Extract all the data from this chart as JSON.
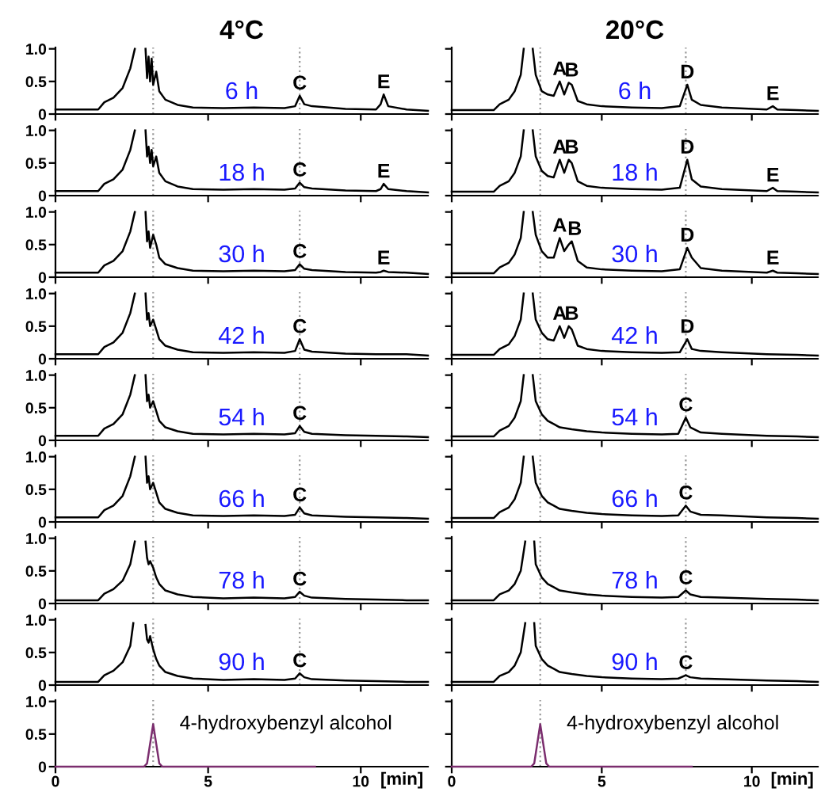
{
  "chart_data": [
    {
      "type": "line",
      "title": "4°C",
      "xlim": [
        0,
        12.2
      ],
      "ylim": [
        0,
        1.02
      ],
      "xticks": [
        0,
        5,
        10
      ],
      "yticks": [
        0,
        0.5,
        {
          "value": 1,
          "label": "1.0"
        }
      ],
      "tick_labels": "y",
      "ref_lines": [
        {
          "axis": "x",
          "value": 3.2,
          "color": "#999999",
          "line_style": "dotted"
        },
        {
          "axis": "x",
          "value": 8.0,
          "color": "#999999",
          "line_style": "dotted"
        }
      ],
      "annotations": [
        "6 h",
        {
          "text": "C",
          "x": 8.0,
          "y": 0.28
        },
        {
          "text": "E",
          "x": 10.75,
          "y": 0.3
        }
      ],
      "series": [
        {
          "color": "#000000",
          "x": [
            0,
            1.4,
            1.6,
            1.9,
            2.2,
            2.45,
            2.6,
            2.62,
            2.95,
            3.0,
            3.05,
            3.1,
            3.15,
            3.2,
            3.3,
            3.4,
            3.6,
            4.0,
            4.5,
            5.5,
            6.5,
            7.5,
            7.85,
            8.0,
            8.15,
            8.4,
            9.5,
            10.5,
            10.65,
            10.75,
            10.9,
            11.5,
            12.2
          ],
          "values": [
            0.07,
            0.07,
            0.18,
            0.25,
            0.4,
            0.7,
            1.0,
            null,
            1.0,
            0.55,
            0.88,
            0.5,
            0.85,
            0.45,
            0.65,
            0.35,
            0.22,
            0.14,
            0.1,
            0.09,
            0.1,
            0.09,
            0.12,
            0.28,
            0.15,
            0.12,
            0.08,
            0.07,
            0.15,
            0.3,
            0.12,
            0.07,
            0.05
          ]
        }
      ]
    },
    {
      "type": "line",
      "xlim": [
        0,
        12.2
      ],
      "ylim": [
        0,
        1.02
      ],
      "xticks": [
        0,
        5,
        10
      ],
      "yticks": [
        0,
        0.5,
        {
          "value": 1,
          "label": "1.0"
        }
      ],
      "tick_labels": "y",
      "ref_lines": [
        {
          "axis": "x",
          "value": 3.2,
          "color": "#999999",
          "line_style": "dotted"
        },
        {
          "axis": "x",
          "value": 8.0,
          "color": "#999999",
          "line_style": "dotted"
        }
      ],
      "annotations": [
        "18 h",
        {
          "text": "C",
          "x": 8.0,
          "y": 0.2
        },
        {
          "text": "E",
          "x": 10.75,
          "y": 0.18
        }
      ],
      "series": [
        {
          "color": "#000000",
          "x": [
            0,
            1.4,
            1.6,
            1.9,
            2.2,
            2.45,
            2.6,
            2.62,
            2.95,
            3.0,
            3.05,
            3.1,
            3.15,
            3.2,
            3.3,
            3.4,
            3.6,
            4.0,
            4.5,
            5.5,
            6.5,
            7.5,
            7.85,
            8.0,
            8.15,
            8.4,
            9.5,
            10.5,
            10.65,
            10.75,
            10.9,
            11.5,
            12.2
          ],
          "values": [
            0.07,
            0.07,
            0.18,
            0.25,
            0.4,
            0.7,
            1.0,
            null,
            1.0,
            0.6,
            0.75,
            0.5,
            0.7,
            0.45,
            0.6,
            0.35,
            0.22,
            0.14,
            0.1,
            0.09,
            0.1,
            0.09,
            0.11,
            0.2,
            0.13,
            0.11,
            0.08,
            0.07,
            0.1,
            0.18,
            0.1,
            0.07,
            0.05
          ]
        }
      ]
    },
    {
      "type": "line",
      "xlim": [
        0,
        12.2
      ],
      "ylim": [
        0,
        1.02
      ],
      "xticks": [
        0,
        5,
        10
      ],
      "yticks": [
        0,
        0.5,
        {
          "value": 1,
          "label": "1.0"
        }
      ],
      "tick_labels": "y",
      "ref_lines": [
        {
          "axis": "x",
          "value": 3.2,
          "color": "#999999",
          "line_style": "dotted"
        },
        {
          "axis": "x",
          "value": 8.0,
          "color": "#999999",
          "line_style": "dotted"
        }
      ],
      "annotations": [
        "30 h",
        {
          "text": "C",
          "x": 8.0,
          "y": 0.2
        },
        {
          "text": "E",
          "x": 10.75,
          "y": 0.1
        }
      ],
      "series": [
        {
          "color": "#000000",
          "x": [
            0,
            1.4,
            1.6,
            1.9,
            2.2,
            2.45,
            2.6,
            2.62,
            2.95,
            3.0,
            3.05,
            3.1,
            3.15,
            3.2,
            3.3,
            3.4,
            3.6,
            4.0,
            4.5,
            5.5,
            6.5,
            7.5,
            7.85,
            8.0,
            8.15,
            8.4,
            9.5,
            10.5,
            10.65,
            10.75,
            10.9,
            11.5,
            12.2
          ],
          "values": [
            0.07,
            0.07,
            0.18,
            0.25,
            0.4,
            0.7,
            1.0,
            null,
            1.0,
            0.55,
            0.7,
            0.45,
            0.55,
            0.65,
            0.5,
            0.3,
            0.2,
            0.14,
            0.1,
            0.09,
            0.1,
            0.09,
            0.11,
            0.2,
            0.13,
            0.11,
            0.08,
            0.07,
            0.08,
            0.1,
            0.08,
            0.07,
            0.05
          ]
        }
      ]
    },
    {
      "type": "line",
      "xlim": [
        0,
        12.2
      ],
      "ylim": [
        0,
        1.02
      ],
      "xticks": [
        0,
        5,
        10
      ],
      "yticks": [
        0,
        0.5,
        {
          "value": 1,
          "label": "1.0"
        }
      ],
      "tick_labels": "y",
      "ref_lines": [
        {
          "axis": "x",
          "value": 3.2,
          "color": "#999999",
          "line_style": "dotted"
        },
        {
          "axis": "x",
          "value": 8.0,
          "color": "#999999",
          "line_style": "dotted"
        }
      ],
      "annotations": [
        "42 h",
        {
          "text": "C",
          "x": 8.0,
          "y": 0.3
        }
      ],
      "series": [
        {
          "color": "#000000",
          "x": [
            0,
            1.4,
            1.6,
            1.9,
            2.2,
            2.45,
            2.6,
            2.62,
            2.95,
            3.0,
            3.05,
            3.1,
            3.15,
            3.2,
            3.3,
            3.4,
            3.6,
            4.0,
            4.5,
            5.5,
            6.5,
            7.5,
            7.85,
            8.0,
            8.15,
            8.4,
            9.5,
            10.5,
            11.5,
            12.2
          ],
          "values": [
            0.07,
            0.07,
            0.18,
            0.25,
            0.4,
            0.7,
            1.0,
            null,
            1.0,
            0.6,
            0.7,
            0.5,
            0.55,
            0.6,
            0.45,
            0.3,
            0.2,
            0.14,
            0.1,
            0.09,
            0.1,
            0.09,
            0.12,
            0.3,
            0.14,
            0.11,
            0.08,
            0.07,
            0.07,
            0.05
          ]
        }
      ]
    },
    {
      "type": "line",
      "xlim": [
        0,
        12.2
      ],
      "ylim": [
        0,
        1.02
      ],
      "xticks": [
        0,
        5,
        10
      ],
      "yticks": [
        0,
        0.5,
        {
          "value": 1,
          "label": "1.0"
        }
      ],
      "tick_labels": "y",
      "ref_lines": [
        {
          "axis": "x",
          "value": 3.2,
          "color": "#999999",
          "line_style": "dotted"
        },
        {
          "axis": "x",
          "value": 8.0,
          "color": "#999999",
          "line_style": "dotted"
        }
      ],
      "annotations": [
        "54 h",
        {
          "text": "C",
          "x": 8.0,
          "y": 0.22
        }
      ],
      "series": [
        {
          "color": "#000000",
          "x": [
            0,
            1.4,
            1.6,
            1.9,
            2.2,
            2.45,
            2.6,
            2.62,
            2.95,
            3.0,
            3.05,
            3.1,
            3.15,
            3.2,
            3.3,
            3.4,
            3.6,
            4.0,
            4.5,
            5.5,
            6.5,
            7.5,
            7.85,
            8.0,
            8.15,
            8.4,
            9.5,
            10.5,
            11.5,
            12.2
          ],
          "values": [
            0.07,
            0.07,
            0.18,
            0.25,
            0.4,
            0.7,
            1.0,
            null,
            1.0,
            0.6,
            0.7,
            0.5,
            0.55,
            0.6,
            0.45,
            0.3,
            0.2,
            0.14,
            0.1,
            0.09,
            0.1,
            0.09,
            0.11,
            0.22,
            0.13,
            0.1,
            0.08,
            0.07,
            0.06,
            0.05
          ]
        }
      ]
    },
    {
      "type": "line",
      "xlim": [
        0,
        12.2
      ],
      "ylim": [
        0,
        1.02
      ],
      "xticks": [
        0,
        5,
        10
      ],
      "yticks": [
        0,
        0.5,
        {
          "value": 1,
          "label": "1.0"
        }
      ],
      "tick_labels": "y",
      "ref_lines": [
        {
          "axis": "x",
          "value": 3.2,
          "color": "#999999",
          "line_style": "dotted"
        },
        {
          "axis": "x",
          "value": 8.0,
          "color": "#999999",
          "line_style": "dotted"
        }
      ],
      "annotations": [
        "66 h",
        {
          "text": "C",
          "x": 8.0,
          "y": 0.22
        }
      ],
      "series": [
        {
          "color": "#000000",
          "x": [
            0,
            1.4,
            1.6,
            1.9,
            2.2,
            2.45,
            2.6,
            2.62,
            2.95,
            3.0,
            3.05,
            3.1,
            3.15,
            3.2,
            3.3,
            3.4,
            3.6,
            4.0,
            4.5,
            5.5,
            6.5,
            7.5,
            7.85,
            8.0,
            8.15,
            8.4,
            9.5,
            10.5,
            11.5,
            12.2
          ],
          "values": [
            0.07,
            0.07,
            0.18,
            0.25,
            0.4,
            0.7,
            1.0,
            null,
            1.0,
            0.6,
            0.7,
            0.5,
            0.55,
            0.6,
            0.45,
            0.3,
            0.2,
            0.14,
            0.1,
            0.09,
            0.1,
            0.09,
            0.11,
            0.22,
            0.13,
            0.1,
            0.08,
            0.07,
            0.06,
            0.05
          ]
        }
      ]
    },
    {
      "type": "line",
      "xlim": [
        0,
        12.2
      ],
      "ylim": [
        0,
        1.02
      ],
      "xticks": [
        0,
        5,
        10
      ],
      "yticks": [
        0,
        0.5,
        {
          "value": 1,
          "label": "1.0"
        }
      ],
      "tick_labels": "y",
      "ref_lines": [
        {
          "axis": "x",
          "value": 3.2,
          "color": "#999999",
          "line_style": "dotted"
        },
        {
          "axis": "x",
          "value": 8.0,
          "color": "#999999",
          "line_style": "dotted"
        }
      ],
      "annotations": [
        "78 h",
        {
          "text": "C",
          "x": 8.0,
          "y": 0.18
        }
      ],
      "series": [
        {
          "color": "#000000",
          "x": [
            0,
            1.4,
            1.6,
            1.9,
            2.2,
            2.45,
            2.6,
            2.62,
            2.95,
            3.0,
            3.05,
            3.1,
            3.2,
            3.3,
            3.4,
            3.6,
            4.0,
            4.5,
            5.5,
            6.5,
            7.5,
            7.85,
            8.0,
            8.15,
            8.4,
            9.5,
            10.5,
            11.5,
            12.2
          ],
          "values": [
            0.05,
            0.05,
            0.15,
            0.22,
            0.35,
            0.6,
            0.95,
            null,
            0.95,
            0.7,
            0.6,
            0.65,
            0.55,
            0.4,
            0.3,
            0.2,
            0.14,
            0.1,
            0.08,
            0.09,
            0.08,
            0.1,
            0.18,
            0.12,
            0.09,
            0.07,
            0.06,
            0.05,
            0.05
          ]
        }
      ]
    },
    {
      "type": "line",
      "xlim": [
        0,
        12.2
      ],
      "ylim": [
        0,
        1.02
      ],
      "xticks": [
        0,
        5,
        10
      ],
      "yticks": [
        0,
        0.5,
        {
          "value": 1,
          "label": "1.0"
        }
      ],
      "tick_labels": "y",
      "ref_lines": [
        {
          "axis": "x",
          "value": 3.2,
          "color": "#999999",
          "line_style": "dotted"
        },
        {
          "axis": "x",
          "value": 8.0,
          "color": "#999999",
          "line_style": "dotted"
        }
      ],
      "annotations": [
        "90 h",
        {
          "text": "C",
          "x": 8.0,
          "y": 0.18
        }
      ],
      "series": [
        {
          "color": "#000000",
          "x": [
            0,
            1.4,
            1.6,
            1.9,
            2.2,
            2.45,
            2.55,
            2.57,
            2.95,
            3.0,
            3.05,
            3.1,
            3.2,
            3.3,
            3.4,
            3.6,
            4.0,
            4.5,
            5.5,
            6.5,
            7.5,
            7.85,
            8.0,
            8.15,
            8.4,
            9.5,
            10.5,
            11.5,
            12.2
          ],
          "values": [
            0.05,
            0.05,
            0.15,
            0.22,
            0.35,
            0.6,
            0.95,
            null,
            0.92,
            0.7,
            0.65,
            0.75,
            0.55,
            0.4,
            0.3,
            0.2,
            0.14,
            0.1,
            0.08,
            0.09,
            0.08,
            0.1,
            0.18,
            0.12,
            0.09,
            0.07,
            0.06,
            0.05,
            0.05
          ]
        }
      ]
    },
    {
      "type": "line",
      "xlabel": "[min]",
      "xlim": [
        0,
        12.2
      ],
      "ylim": [
        0,
        1.02
      ],
      "xticks": [
        0,
        5,
        10
      ],
      "yticks": [
        0,
        0.5,
        {
          "value": 1,
          "label": "1.0"
        }
      ],
      "ref_lines": [
        {
          "axis": "x",
          "value": 3.2,
          "color": "#999999",
          "line_style": "dotted"
        }
      ],
      "annotations": [
        {
          "text": "4-hydroxybenzyl alcohol",
          "x": 3.2,
          "y": 0.65
        }
      ],
      "series": [
        {
          "color": "#7b2d6e",
          "x": [
            0,
            2.9,
            3.0,
            3.1,
            3.2,
            3.3,
            3.4,
            3.5,
            8.5
          ],
          "values": [
            0,
            0,
            0.05,
            0.35,
            0.65,
            0.35,
            0.05,
            0,
            0
          ]
        }
      ]
    },
    {
      "type": "line",
      "title": "20°C",
      "xlim": [
        0,
        12.2
      ],
      "ylim": [
        0,
        1.02
      ],
      "xticks": [
        0,
        5,
        10
      ],
      "yticks": [
        {
          "value": 0,
          "label": null
        },
        {
          "value": 0.5,
          "label": null
        },
        {
          "value": 1,
          "label": null
        }
      ],
      "tick_labels": false,
      "ref_lines": [
        {
          "axis": "x",
          "value": 2.95,
          "color": "#999999",
          "line_style": "dotted"
        },
        {
          "axis": "x",
          "value": 7.8,
          "color": "#999999",
          "line_style": "dotted"
        }
      ],
      "annotations": [
        "6 h",
        {
          "text": "A",
          "x": 3.6,
          "y": 0.5
        },
        {
          "text": "B",
          "x": 4.0,
          "y": 0.48
        },
        {
          "text": "D",
          "x": 7.85,
          "y": 0.45
        },
        {
          "text": "E",
          "x": 10.7,
          "y": 0.12
        }
      ],
      "series": [
        {
          "color": "#000000",
          "x": [
            0,
            1.4,
            1.6,
            1.9,
            2.1,
            2.3,
            2.4,
            2.42,
            2.7,
            2.8,
            3.0,
            3.2,
            3.4,
            3.6,
            3.75,
            3.9,
            4.0,
            4.2,
            4.5,
            5.0,
            6.0,
            7.0,
            7.6,
            7.85,
            8.0,
            8.3,
            9.0,
            10.5,
            10.7,
            10.85,
            11.5,
            12.2
          ],
          "values": [
            0.06,
            0.06,
            0.15,
            0.22,
            0.35,
            0.6,
            1.0,
            null,
            1.0,
            0.6,
            0.35,
            0.3,
            0.28,
            0.5,
            0.3,
            0.48,
            0.45,
            0.2,
            0.15,
            0.12,
            0.1,
            0.09,
            0.12,
            0.45,
            0.22,
            0.14,
            0.1,
            0.07,
            0.12,
            0.07,
            0.06,
            0.05
          ]
        }
      ]
    },
    {
      "type": "line",
      "xlim": [
        0,
        12.2
      ],
      "ylim": [
        0,
        1.02
      ],
      "xticks": [
        0,
        5,
        10
      ],
      "yticks": [
        {
          "value": 0,
          "label": null
        },
        {
          "value": 0.5,
          "label": null
        },
        {
          "value": 1,
          "label": null
        }
      ],
      "tick_labels": false,
      "ref_lines": [
        {
          "axis": "x",
          "value": 2.95,
          "color": "#999999",
          "line_style": "dotted"
        },
        {
          "axis": "x",
          "value": 7.8,
          "color": "#999999",
          "line_style": "dotted"
        }
      ],
      "annotations": [
        "18 h",
        {
          "text": "A",
          "x": 3.6,
          "y": 0.55
        },
        {
          "text": "B",
          "x": 4.0,
          "y": 0.55
        },
        {
          "text": "D",
          "x": 7.85,
          "y": 0.55
        },
        {
          "text": "E",
          "x": 10.7,
          "y": 0.12
        }
      ],
      "series": [
        {
          "color": "#000000",
          "x": [
            0,
            1.4,
            1.6,
            1.9,
            2.1,
            2.3,
            2.4,
            2.42,
            2.7,
            2.8,
            3.0,
            3.2,
            3.4,
            3.6,
            3.75,
            3.9,
            4.0,
            4.2,
            4.5,
            5.0,
            6.0,
            7.0,
            7.6,
            7.85,
            8.0,
            8.3,
            9.0,
            10.5,
            10.7,
            10.85,
            11.5,
            12.2
          ],
          "values": [
            0.06,
            0.06,
            0.15,
            0.22,
            0.35,
            0.6,
            1.0,
            null,
            1.0,
            0.6,
            0.38,
            0.3,
            0.28,
            0.55,
            0.35,
            0.55,
            0.5,
            0.22,
            0.15,
            0.12,
            0.1,
            0.09,
            0.12,
            0.55,
            0.25,
            0.14,
            0.1,
            0.07,
            0.12,
            0.07,
            0.06,
            0.05
          ]
        }
      ]
    },
    {
      "type": "line",
      "xlim": [
        0,
        12.2
      ],
      "ylim": [
        0,
        1.02
      ],
      "xticks": [
        0,
        5,
        10
      ],
      "yticks": [
        {
          "value": 0,
          "label": null
        },
        {
          "value": 0.5,
          "label": null
        },
        {
          "value": 1,
          "label": null
        }
      ],
      "tick_labels": false,
      "ref_lines": [
        {
          "axis": "x",
          "value": 2.95,
          "color": "#999999",
          "line_style": "dotted"
        },
        {
          "axis": "x",
          "value": 7.8,
          "color": "#999999",
          "line_style": "dotted"
        }
      ],
      "annotations": [
        "30 h",
        {
          "text": "A",
          "x": 3.6,
          "y": 0.6
        },
        {
          "text": "B",
          "x": 4.1,
          "y": 0.55
        },
        {
          "text": "D",
          "x": 7.85,
          "y": 0.45
        },
        {
          "text": "E",
          "x": 10.7,
          "y": 0.1
        }
      ],
      "series": [
        {
          "color": "#000000",
          "x": [
            0,
            1.4,
            1.6,
            1.9,
            2.1,
            2.3,
            2.4,
            2.42,
            2.7,
            2.8,
            3.0,
            3.2,
            3.4,
            3.6,
            3.75,
            3.9,
            4.0,
            4.2,
            4.5,
            5.0,
            6.0,
            7.0,
            7.6,
            7.85,
            8.0,
            8.3,
            9.0,
            10.5,
            10.7,
            10.85,
            11.5,
            12.2
          ],
          "values": [
            0.06,
            0.06,
            0.15,
            0.22,
            0.35,
            0.6,
            1.0,
            null,
            1.0,
            0.65,
            0.4,
            0.3,
            0.3,
            0.6,
            0.4,
            0.5,
            0.55,
            0.25,
            0.15,
            0.12,
            0.1,
            0.09,
            0.12,
            0.45,
            0.3,
            0.14,
            0.1,
            0.07,
            0.1,
            0.07,
            0.06,
            0.05
          ]
        }
      ]
    },
    {
      "type": "line",
      "xlim": [
        0,
        12.2
      ],
      "ylim": [
        0,
        1.02
      ],
      "xticks": [
        0,
        5,
        10
      ],
      "yticks": [
        {
          "value": 0,
          "label": null
        },
        {
          "value": 0.5,
          "label": null
        },
        {
          "value": 1,
          "label": null
        }
      ],
      "tick_labels": false,
      "ref_lines": [
        {
          "axis": "x",
          "value": 2.95,
          "color": "#999999",
          "line_style": "dotted"
        },
        {
          "axis": "x",
          "value": 7.8,
          "color": "#999999",
          "line_style": "dotted"
        }
      ],
      "annotations": [
        "42 h",
        {
          "text": "A",
          "x": 3.6,
          "y": 0.5
        },
        {
          "text": "B",
          "x": 4.0,
          "y": 0.5
        },
        {
          "text": "D",
          "x": 7.85,
          "y": 0.3
        }
      ],
      "series": [
        {
          "color": "#000000",
          "x": [
            0,
            1.4,
            1.6,
            1.9,
            2.1,
            2.3,
            2.4,
            2.42,
            2.7,
            2.8,
            3.0,
            3.2,
            3.4,
            3.6,
            3.75,
            3.9,
            4.0,
            4.2,
            4.5,
            5.0,
            6.0,
            7.0,
            7.6,
            7.85,
            8.0,
            8.3,
            9.0,
            10.5,
            11.5,
            12.2
          ],
          "values": [
            0.06,
            0.06,
            0.15,
            0.22,
            0.35,
            0.6,
            1.0,
            null,
            1.0,
            0.6,
            0.4,
            0.3,
            0.28,
            0.5,
            0.32,
            0.5,
            0.45,
            0.2,
            0.15,
            0.12,
            0.1,
            0.09,
            0.1,
            0.3,
            0.15,
            0.12,
            0.1,
            0.07,
            0.06,
            0.05
          ]
        }
      ]
    },
    {
      "type": "line",
      "xlim": [
        0,
        12.2
      ],
      "ylim": [
        0,
        1.02
      ],
      "xticks": [
        0,
        5,
        10
      ],
      "yticks": [
        {
          "value": 0,
          "label": null
        },
        {
          "value": 0.5,
          "label": null
        },
        {
          "value": 1,
          "label": null
        }
      ],
      "tick_labels": false,
      "ref_lines": [
        {
          "axis": "x",
          "value": 2.95,
          "color": "#999999",
          "line_style": "dotted"
        },
        {
          "axis": "x",
          "value": 7.8,
          "color": "#999999",
          "line_style": "dotted"
        }
      ],
      "annotations": [
        "54 h",
        {
          "text": "C",
          "x": 7.8,
          "y": 0.35
        }
      ],
      "series": [
        {
          "color": "#000000",
          "x": [
            0,
            1.4,
            1.6,
            1.9,
            2.1,
            2.3,
            2.4,
            2.42,
            2.7,
            2.8,
            3.0,
            3.2,
            3.4,
            3.6,
            4.0,
            4.5,
            5.0,
            6.0,
            7.0,
            7.55,
            7.8,
            7.95,
            8.3,
            9.0,
            10.5,
            11.5,
            12.2
          ],
          "values": [
            0.06,
            0.06,
            0.15,
            0.22,
            0.35,
            0.6,
            1.0,
            null,
            1.0,
            0.6,
            0.4,
            0.3,
            0.25,
            0.2,
            0.17,
            0.14,
            0.12,
            0.1,
            0.09,
            0.1,
            0.35,
            0.2,
            0.12,
            0.1,
            0.07,
            0.06,
            0.05
          ]
        }
      ]
    },
    {
      "type": "line",
      "xlim": [
        0,
        12.2
      ],
      "ylim": [
        0,
        1.02
      ],
      "xticks": [
        0,
        5,
        10
      ],
      "yticks": [
        {
          "value": 0,
          "label": null
        },
        {
          "value": 0.5,
          "label": null
        },
        {
          "value": 1,
          "label": null
        }
      ],
      "tick_labels": false,
      "ref_lines": [
        {
          "axis": "x",
          "value": 2.95,
          "color": "#999999",
          "line_style": "dotted"
        },
        {
          "axis": "x",
          "value": 7.8,
          "color": "#999999",
          "line_style": "dotted"
        }
      ],
      "annotations": [
        "66 h",
        {
          "text": "C",
          "x": 7.8,
          "y": 0.25
        }
      ],
      "series": [
        {
          "color": "#000000",
          "x": [
            0,
            1.4,
            1.6,
            1.9,
            2.1,
            2.3,
            2.4,
            2.42,
            2.7,
            2.8,
            3.0,
            3.2,
            3.4,
            3.6,
            4.0,
            4.5,
            5.0,
            6.0,
            7.0,
            7.55,
            7.8,
            7.95,
            8.3,
            9.0,
            10.5,
            11.5,
            12.2
          ],
          "values": [
            0.06,
            0.06,
            0.15,
            0.22,
            0.35,
            0.6,
            1.0,
            null,
            1.0,
            0.6,
            0.4,
            0.3,
            0.25,
            0.2,
            0.17,
            0.14,
            0.12,
            0.1,
            0.09,
            0.1,
            0.25,
            0.16,
            0.11,
            0.1,
            0.07,
            0.06,
            0.05
          ]
        }
      ]
    },
    {
      "type": "line",
      "xlim": [
        0,
        12.2
      ],
      "ylim": [
        0,
        1.02
      ],
      "xticks": [
        0,
        5,
        10
      ],
      "yticks": [
        {
          "value": 0,
          "label": null
        },
        {
          "value": 0.5,
          "label": null
        },
        {
          "value": 1,
          "label": null
        }
      ],
      "tick_labels": false,
      "ref_lines": [
        {
          "axis": "x",
          "value": 2.95,
          "color": "#999999",
          "line_style": "dotted"
        },
        {
          "axis": "x",
          "value": 7.8,
          "color": "#999999",
          "line_style": "dotted"
        }
      ],
      "annotations": [
        "78 h",
        {
          "text": "C",
          "x": 7.8,
          "y": 0.2
        }
      ],
      "series": [
        {
          "color": "#000000",
          "x": [
            0,
            1.4,
            1.6,
            1.9,
            2.1,
            2.3,
            2.45,
            2.47,
            2.75,
            2.8,
            3.0,
            3.2,
            3.4,
            3.6,
            4.0,
            4.5,
            5.0,
            6.0,
            7.0,
            7.55,
            7.8,
            7.95,
            8.3,
            9.0,
            10.5,
            11.5,
            12.2
          ],
          "values": [
            0.05,
            0.05,
            0.14,
            0.2,
            0.3,
            0.5,
            0.95,
            null,
            0.95,
            0.6,
            0.4,
            0.3,
            0.25,
            0.2,
            0.17,
            0.14,
            0.12,
            0.1,
            0.09,
            0.1,
            0.2,
            0.14,
            0.1,
            0.09,
            0.07,
            0.06,
            0.05
          ]
        }
      ]
    },
    {
      "type": "line",
      "xlim": [
        0,
        12.2
      ],
      "ylim": [
        0,
        1.02
      ],
      "xticks": [
        0,
        5,
        10
      ],
      "yticks": [
        {
          "value": 0,
          "label": null
        },
        {
          "value": 0.5,
          "label": null
        },
        {
          "value": 1,
          "label": null
        }
      ],
      "tick_labels": false,
      "ref_lines": [
        {
          "axis": "x",
          "value": 2.95,
          "color": "#999999",
          "line_style": "dotted"
        },
        {
          "axis": "x",
          "value": 7.8,
          "color": "#999999",
          "line_style": "dotted"
        }
      ],
      "annotations": [
        "90 h",
        {
          "text": "C",
          "x": 7.8,
          "y": 0.15
        }
      ],
      "series": [
        {
          "color": "#000000",
          "x": [
            0,
            1.4,
            1.6,
            1.9,
            2.1,
            2.3,
            2.45,
            2.47,
            2.75,
            2.8,
            3.0,
            3.2,
            3.4,
            3.6,
            4.0,
            4.5,
            5.0,
            6.0,
            7.0,
            7.55,
            7.8,
            7.95,
            8.3,
            9.0,
            10.5,
            11.5,
            12.2
          ],
          "values": [
            0.05,
            0.05,
            0.14,
            0.2,
            0.3,
            0.5,
            0.95,
            null,
            0.95,
            0.6,
            0.4,
            0.3,
            0.25,
            0.2,
            0.17,
            0.14,
            0.12,
            0.1,
            0.09,
            0.1,
            0.15,
            0.12,
            0.1,
            0.09,
            0.07,
            0.06,
            0.05
          ]
        }
      ]
    },
    {
      "type": "line",
      "xlabel": "[min]",
      "xlim": [
        0,
        12.2
      ],
      "ylim": [
        0,
        1.02
      ],
      "xticks": [
        0,
        5,
        10
      ],
      "yticks": [
        {
          "value": 0,
          "label": null
        },
        {
          "value": 0.5,
          "label": null
        },
        {
          "value": 1,
          "label": null
        }
      ],
      "tick_labels": "x",
      "ref_lines": [
        {
          "axis": "x",
          "value": 2.95,
          "color": "#999999",
          "line_style": "dotted"
        }
      ],
      "annotations": [
        {
          "text": "4-hydroxybenzyl alcohol",
          "x": 2.95,
          "y": 0.65
        }
      ],
      "series": [
        {
          "color": "#7b2d6e",
          "x": [
            0,
            2.65,
            2.75,
            2.85,
            2.95,
            3.05,
            3.15,
            3.25,
            8.0
          ],
          "values": [
            0,
            0,
            0.05,
            0.35,
            0.65,
            0.35,
            0.05,
            0,
            0
          ]
        }
      ]
    }
  ]
}
